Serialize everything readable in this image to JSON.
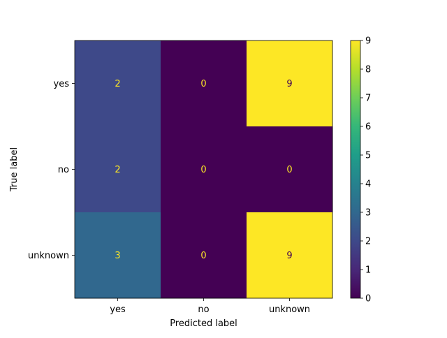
{
  "chart_data": {
    "type": "heatmap",
    "title": "",
    "xlabel": "Predicted label",
    "ylabel": "True label",
    "x_categories": [
      "yes",
      "no",
      "unknown"
    ],
    "y_categories": [
      "yes",
      "no",
      "unknown"
    ],
    "values": [
      [
        2,
        0,
        9
      ],
      [
        2,
        0,
        0
      ],
      [
        3,
        0,
        9
      ]
    ],
    "colormap": "viridis",
    "value_range": [
      0,
      9
    ],
    "colorbar_ticks": [
      0,
      1,
      2,
      3,
      4,
      5,
      6,
      7,
      8,
      9
    ],
    "grid": false
  }
}
